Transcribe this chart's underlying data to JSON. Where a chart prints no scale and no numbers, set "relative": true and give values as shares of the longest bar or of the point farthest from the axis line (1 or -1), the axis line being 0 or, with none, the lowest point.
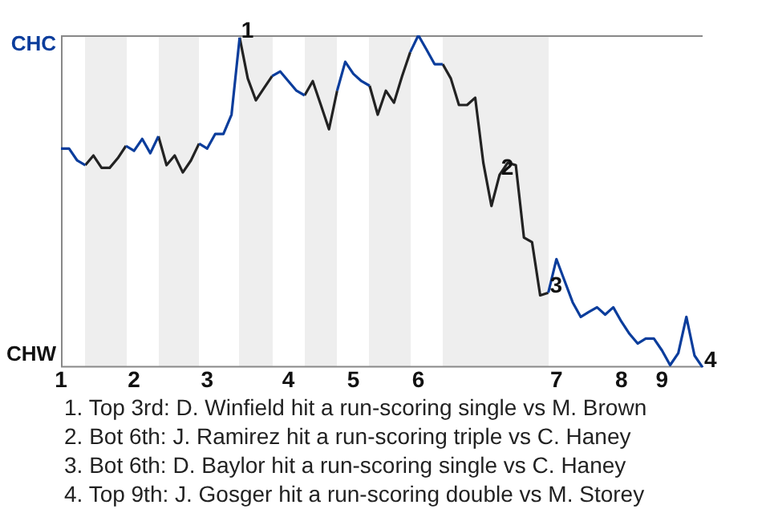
{
  "chart_data": {
    "type": "line",
    "relative": true,
    "categories": [
      "1",
      null,
      null,
      null,
      null,
      null,
      null,
      null,
      null,
      "2",
      null,
      null,
      null,
      null,
      null,
      null,
      null,
      null,
      "3",
      null,
      null,
      null,
      null,
      null,
      null,
      null,
      null,
      null,
      "4",
      null,
      null,
      null,
      null,
      null,
      null,
      null,
      "5",
      null,
      null,
      null,
      null,
      null,
      null,
      null,
      "6",
      null,
      null,
      null,
      null,
      null,
      null,
      null,
      null,
      null,
      null,
      null,
      null,
      null,
      null,
      null,
      null,
      "7",
      null,
      null,
      null,
      null,
      null,
      null,
      null,
      "8",
      null,
      null,
      null,
      null,
      "9",
      null,
      null,
      null,
      null,
      null
    ],
    "series": [
      {
        "color": "#0b3d9c",
        "values": [
          0.659,
          0.659,
          0.623,
          0.609,
          null,
          null,
          null,
          null,
          0.667,
          0.652,
          0.688,
          0.645,
          0.696,
          null,
          null,
          null,
          null,
          0.674,
          0.659,
          0.703,
          0.703,
          0.761,
          0.993,
          null,
          null,
          null,
          0.877,
          0.891,
          0.862,
          0.833,
          0.819,
          null,
          null,
          null,
          0.833,
          0.92,
          0.884,
          0.862,
          0.848,
          null,
          null,
          null,
          null,
          0.949,
          1,
          0.957,
          0.913,
          0.913,
          null,
          null,
          null,
          null,
          null,
          null,
          null,
          null,
          null,
          null,
          null,
          null,
          0.225,
          0.326,
          0.261,
          0.196,
          0.152,
          0.167,
          0.181,
          0.159,
          0.181,
          0.138,
          0.101,
          0.072,
          0.087,
          0.087,
          0.051,
          0.007,
          0.043,
          0.152,
          0.036,
          0
        ]
      },
      {
        "color": "#222222",
        "values": [
          null,
          null,
          null,
          0.609,
          0.638,
          0.601,
          0.601,
          0.63,
          0.667,
          null,
          null,
          null,
          0.696,
          0.609,
          0.638,
          0.587,
          0.623,
          0.674,
          null,
          null,
          null,
          null,
          0.993,
          0.87,
          0.804,
          0.841,
          0.877,
          null,
          null,
          null,
          0.819,
          0.862,
          0.79,
          0.717,
          0.833,
          null,
          null,
          null,
          0.848,
          0.761,
          0.833,
          0.797,
          0.877,
          0.949,
          null,
          null,
          null,
          0.913,
          0.87,
          0.79,
          0.79,
          0.812,
          0.616,
          0.486,
          0.58,
          0.616,
          0.609,
          0.391,
          0.377,
          0.217,
          0.225,
          null,
          null,
          null,
          null,
          null,
          null,
          null,
          null,
          null,
          null,
          null,
          null,
          null,
          null,
          null,
          null,
          null,
          null,
          null
        ]
      }
    ],
    "marker": "none",
    "line_style": "solid",
    "legend": false,
    "annotations": [
      "CHC",
      "CHW",
      {
        "text": "1",
        "y": 0.993
      },
      {
        "text": "2",
        "y": 0.58
      },
      {
        "text": "3",
        "y": 0.225
      },
      {
        "text": "4",
        "y": 0
      },
      "1. Top 3rd: D. Winfield hit a run-scoring single vs M. Brown",
      "2. Bot 6th: J. Ramirez hit a run-scoring triple vs C. Haney",
      "3. Bot 6th: D. Baylor hit a run-scoring single vs C. Haney",
      "4. Top 9th: J. Gosger hit a run-scoring double vs M. Storey"
    ]
  }
}
